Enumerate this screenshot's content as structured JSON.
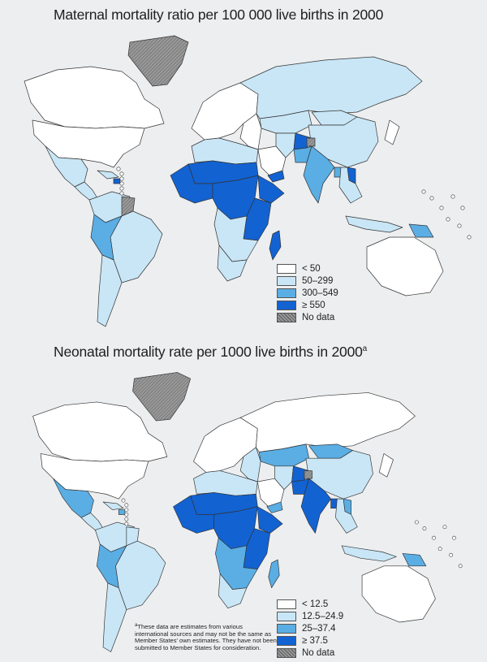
{
  "colors": {
    "white": "#ffffff",
    "light": "#c9e6f6",
    "medium": "#5aaee4",
    "dark": "#1262d2",
    "nodata": "#8c8c8c",
    "land_outline": "#333333"
  },
  "maps": [
    {
      "title": "Maternal mortality ratio per 100 000 live births in 2000",
      "title_note": "",
      "legend": [
        {
          "label": "< 50",
          "color": "#ffffff"
        },
        {
          "label": "50–299",
          "color": "#c9e6f6"
        },
        {
          "label": "300–549",
          "color": "#5aaee4"
        },
        {
          "label": "≥ 550",
          "color": "#1262d2"
        },
        {
          "label": "No data",
          "color": "#8c8c8c"
        }
      ]
    },
    {
      "title": "Neonatal mortality rate per 1000 live births in 2000",
      "title_note": "a",
      "legend": [
        {
          "label": "< 12.5",
          "color": "#ffffff"
        },
        {
          "label": "12.5–24.9",
          "color": "#c9e6f6"
        },
        {
          "label": "25–37.4",
          "color": "#5aaee4"
        },
        {
          "label": "≥ 37.5",
          "color": "#1262d2"
        },
        {
          "label": "No data",
          "color": "#8c8c8c"
        }
      ]
    }
  ],
  "footnote": {
    "marker": "a",
    "text": "These data are estimates from various international sources and may not be the same as Member States' own estimates. They have not been submitted to Member States for consideration."
  },
  "region_classes": {
    "map1": {
      "greenland": "nodata",
      "canada": "white",
      "usa": "white",
      "mexico": "light",
      "central_america": "light",
      "caribbean": "light",
      "haiti": "dark",
      "north_south_america": "light",
      "brazil": "light",
      "bolivia_peru": "medium",
      "southern_cone": "light",
      "guyanas": "nodata",
      "europe": "white",
      "russia": "light",
      "central_asia": "light",
      "north_africa": "light",
      "sahel": "dark",
      "west_africa": "dark",
      "central_africa": "dark",
      "east_africa": "dark",
      "horn": "dark",
      "southern_africa": "light",
      "south_africa": "light",
      "madagascar": "dark",
      "middle_east": "white",
      "arabia": "white",
      "yemen": "dark",
      "iran": "light",
      "afghanistan": "dark",
      "pakistan": "medium",
      "india": "medium",
      "bangladesh": "medium",
      "china": "light",
      "mongolia": "light",
      "se_asia": "light",
      "laos": "dark",
      "indonesia": "light",
      "png": "medium",
      "australia": "white",
      "japan": "white",
      "kashmir": "nodata"
    },
    "map2": {
      "greenland": "nodata",
      "canada": "white",
      "usa": "white",
      "mexico": "medium",
      "central_america": "light",
      "caribbean": "light",
      "haiti": "medium",
      "north_south_america": "light",
      "brazil": "light",
      "bolivia_peru": "medium",
      "southern_cone": "light",
      "guyanas": "light",
      "europe": "white",
      "russia": "white",
      "central_asia": "medium",
      "north_africa": "light",
      "sahel": "dark",
      "west_africa": "dark",
      "central_africa": "dark",
      "east_africa": "dark",
      "horn": "dark",
      "southern_africa": "medium",
      "south_africa": "light",
      "madagascar": "medium",
      "middle_east": "light",
      "arabia": "white",
      "yemen": "medium",
      "iran": "light",
      "afghanistan": "dark",
      "pakistan": "dark",
      "india": "dark",
      "bangladesh": "dark",
      "china": "light",
      "mongolia": "medium",
      "se_asia": "light",
      "laos": "medium",
      "indonesia": "light",
      "png": "medium",
      "australia": "white",
      "japan": "white",
      "kashmir": "nodata"
    }
  }
}
